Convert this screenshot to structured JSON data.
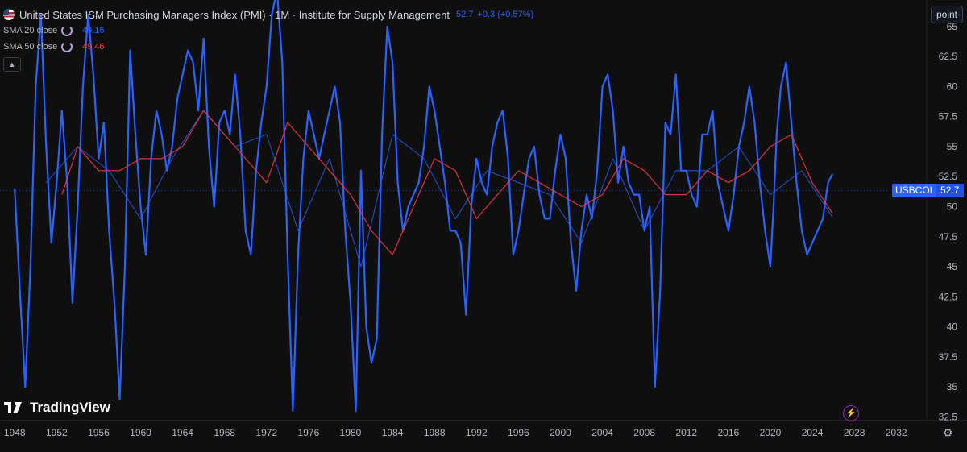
{
  "header": {
    "title": "United States ISM Purchasing Managers Index (PMI) · 1M · Institute for Supply Management",
    "last_value": "52.7",
    "change": "+0.3 (+0.57%)",
    "sma20_label": "SMA 20 close",
    "sma20_value": "49.16",
    "sma50_label": "SMA 50 close",
    "sma50_value": "49.46"
  },
  "scale_button": "point",
  "price_tag": {
    "symbol": "USBCOI",
    "value": "52.7"
  },
  "logo_text": "TradingView",
  "colors": {
    "background": "#0f0f0f",
    "pmi": "#2962ff",
    "sma20": "#2962ff",
    "sma50": "#f23645",
    "grid": "#1c1f26",
    "axis_text": "#b2b5be"
  },
  "chart_data": {
    "type": "line",
    "title": "United States ISM Purchasing Managers Index (PMI) · 1M · Institute for Supply Management",
    "xlabel": "",
    "ylabel": "",
    "x_ticks": [
      "1948",
      "1952",
      "1956",
      "1960",
      "1964",
      "1968",
      "1972",
      "1976",
      "1980",
      "1984",
      "1988",
      "1992",
      "1996",
      "2000",
      "2004",
      "2008",
      "2012",
      "2016",
      "2020",
      "2024",
      "2028",
      "2032"
    ],
    "y_ticks": [
      "65",
      "62.5",
      "60",
      "57.5",
      "55",
      "52.5",
      "50",
      "47.5",
      "45",
      "42.5",
      "40",
      "37.5",
      "35",
      "32.5"
    ],
    "xlim": [
      1946.6,
      2034.9
    ],
    "ylim": [
      32.2,
      67.2
    ],
    "grid": false,
    "series": [
      {
        "name": "USBCOI",
        "x": [
          1948.0,
          1948.5,
          1949.0,
          1949.5,
          1950.0,
          1950.5,
          1951.0,
          1951.5,
          1952.0,
          1952.5,
          1953.0,
          1953.5,
          1954.0,
          1954.5,
          1955.0,
          1955.5,
          1956.0,
          1956.5,
          1957.0,
          1957.5,
          1958.0,
          1958.5,
          1959.0,
          1959.5,
          1960.0,
          1960.5,
          1961.0,
          1961.5,
          1962.0,
          1962.5,
          1963.0,
          1963.5,
          1964.0,
          1964.5,
          1965.0,
          1965.5,
          1966.0,
          1966.5,
          1967.0,
          1967.5,
          1968.0,
          1968.5,
          1969.0,
          1969.5,
          1970.0,
          1970.5,
          1971.0,
          1971.5,
          1972.0,
          1972.5,
          1973.0,
          1973.5,
          1974.0,
          1974.5,
          1975.0,
          1975.5,
          1976.0,
          1976.5,
          1977.0,
          1977.5,
          1978.0,
          1978.5,
          1979.0,
          1979.5,
          1980.0,
          1980.5,
          1981.0,
          1981.5,
          1982.0,
          1982.5,
          1983.0,
          1983.5,
          1984.0,
          1984.5,
          1985.0,
          1985.5,
          1986.0,
          1986.5,
          1987.0,
          1987.5,
          1988.0,
          1988.5,
          1989.0,
          1989.5,
          1990.0,
          1990.5,
          1991.0,
          1991.5,
          1992.0,
          1992.5,
          1993.0,
          1993.5,
          1994.0,
          1994.5,
          1995.0,
          1995.5,
          1996.0,
          1996.5,
          1997.0,
          1997.5,
          1998.0,
          1998.5,
          1999.0,
          1999.5,
          2000.0,
          2000.5,
          2001.0,
          2001.5,
          2002.0,
          2002.5,
          2003.0,
          2003.5,
          2004.0,
          2004.5,
          2005.0,
          2005.5,
          2006.0,
          2006.5,
          2007.0,
          2007.5,
          2008.0,
          2008.5,
          2009.0,
          2009.5,
          2010.0,
          2010.5,
          2011.0,
          2011.5,
          2012.0,
          2012.5,
          2013.0,
          2013.5,
          2014.0,
          2014.5,
          2015.0,
          2015.5,
          2016.0,
          2016.5,
          2017.0,
          2017.5,
          2018.0,
          2018.5,
          2019.0,
          2019.5,
          2020.0,
          2020.3,
          2020.6,
          2021.0,
          2021.5,
          2022.0,
          2022.5,
          2023.0,
          2023.5,
          2024.0,
          2024.5,
          2025.0,
          2025.5,
          2025.9
        ],
        "values": [
          51.5,
          43,
          35,
          45,
          60,
          66,
          55,
          47,
          52,
          58,
          52,
          42,
          50,
          60,
          66,
          61,
          54,
          57,
          48,
          42,
          34,
          45,
          63,
          56,
          50,
          46,
          54,
          58,
          56,
          53,
          55,
          59,
          61,
          63,
          62,
          58,
          64,
          55,
          50,
          57,
          58,
          56,
          61,
          56,
          48,
          46,
          53,
          57,
          60,
          66,
          68,
          62,
          46,
          33,
          46,
          54,
          58,
          56,
          54,
          56,
          58,
          60,
          57,
          48,
          42,
          33,
          53,
          40,
          37,
          39,
          56,
          65,
          62,
          52,
          48,
          50,
          51,
          52,
          55,
          60,
          58,
          55,
          52,
          48,
          48,
          47,
          41,
          50,
          54,
          52,
          51,
          55,
          57,
          58,
          54,
          46,
          48,
          51,
          54,
          55,
          51,
          49,
          49,
          53,
          56,
          54,
          47,
          43,
          48,
          51,
          49,
          53,
          60,
          61,
          58,
          52,
          55,
          52,
          51,
          51,
          48,
          50,
          35,
          43,
          57,
          56,
          61,
          53,
          53,
          51,
          50,
          56,
          56,
          58,
          52,
          50,
          48,
          51,
          55,
          57,
          60,
          57,
          52,
          48,
          45,
          50,
          56,
          60,
          62,
          57,
          52,
          48,
          46,
          47,
          48,
          49,
          52,
          52.7
        ]
      },
      {
        "name": "SMA 20 close",
        "x": [
          1951.0,
          1954.0,
          1957.0,
          1960.0,
          1963.0,
          1966.0,
          1969.0,
          1972.0,
          1975.0,
          1978.0,
          1981.0,
          1984.0,
          1987.0,
          1990.0,
          1993.0,
          1996.0,
          1999.0,
          2002.0,
          2005.0,
          2008.0,
          2011.0,
          2014.0,
          2017.0,
          2020.0,
          2023.0,
          2025.9
        ],
        "values": [
          52,
          55,
          53,
          49,
          54,
          58,
          55,
          56,
          48,
          54,
          45,
          56,
          54,
          49,
          53,
          52,
          51,
          47,
          54,
          48,
          53,
          53,
          55,
          51,
          53,
          49.16
        ]
      },
      {
        "name": "SMA 50 close",
        "x": [
          1952.5,
          1954.0,
          1956.0,
          1958.0,
          1960.0,
          1962.0,
          1964.0,
          1966.0,
          1968.0,
          1970.0,
          1972.0,
          1974.0,
          1976.0,
          1978.0,
          1980.0,
          1982.0,
          1984.0,
          1986.0,
          1988.0,
          1990.0,
          1992.0,
          1994.0,
          1996.0,
          1998.0,
          2000.0,
          2002.0,
          2004.0,
          2006.0,
          2008.0,
          2010.0,
          2012.0,
          2014.0,
          2016.0,
          2018.0,
          2020.0,
          2022.0,
          2024.0,
          2025.9
        ],
        "values": [
          51,
          55,
          53,
          53,
          54,
          54,
          55,
          58,
          56,
          54,
          52,
          57,
          55,
          53,
          51,
          48,
          46,
          50,
          54,
          53,
          49,
          51,
          53,
          52,
          51,
          50,
          51,
          54,
          53,
          51,
          51,
          53,
          52,
          53,
          55,
          56,
          52,
          49.46
        ]
      }
    ]
  }
}
